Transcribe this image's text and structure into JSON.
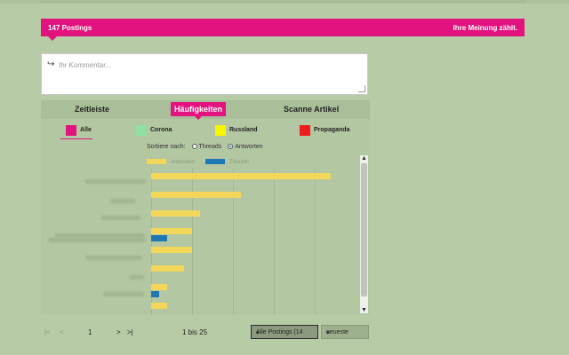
{
  "header": {
    "count_label": "147 Postings",
    "tagline": "Ihre Meinung zählt."
  },
  "comment": {
    "placeholder": "Ihr Kommentar..."
  },
  "tabs": [
    {
      "label": "Zeitleiste",
      "active": false
    },
    {
      "label": "Häufigkeiten",
      "active": true
    },
    {
      "label": "Scanne Artikel",
      "active": false
    }
  ],
  "categories": [
    {
      "label": "Alle",
      "color": "#e2137e",
      "selected": true
    },
    {
      "label": "Corona",
      "color": "#8fe0a1",
      "selected": false
    },
    {
      "label": "Russland",
      "color": "#f7f500",
      "selected": false
    },
    {
      "label": "Propaganda",
      "color": "#ee1c1c",
      "selected": false
    }
  ],
  "sort": {
    "label": "Sortiere nach:",
    "options": [
      {
        "label": "Threads",
        "selected": false
      },
      {
        "label": "Antworten",
        "selected": true
      }
    ]
  },
  "legend": {
    "antworten_label": "Antworten",
    "threads_label": "Threads",
    "antworten_color": "#f2d75a",
    "threads_color": "#1f77b4"
  },
  "chart_data": {
    "type": "bar",
    "orientation": "horizontal",
    "series": [
      {
        "name": "Antworten",
        "values": [
          88,
          44,
          24,
          20,
          20,
          16,
          8,
          8
        ]
      },
      {
        "name": "Threads",
        "values": [
          0,
          0,
          0,
          8,
          0,
          0,
          4,
          0
        ]
      }
    ],
    "xlim": [
      0,
      100
    ],
    "grid": true
  },
  "pager": {
    "first": "|<",
    "prev": "<",
    "page": "1",
    "next": ">",
    "last": ">|",
    "range": "1 bis 25"
  },
  "filters": {
    "postings_select": "Alle Postings (14",
    "order_select": "neueste"
  },
  "icons": {
    "reply": "reply-arrow-icon",
    "chevron": "chevron-down-icon"
  }
}
